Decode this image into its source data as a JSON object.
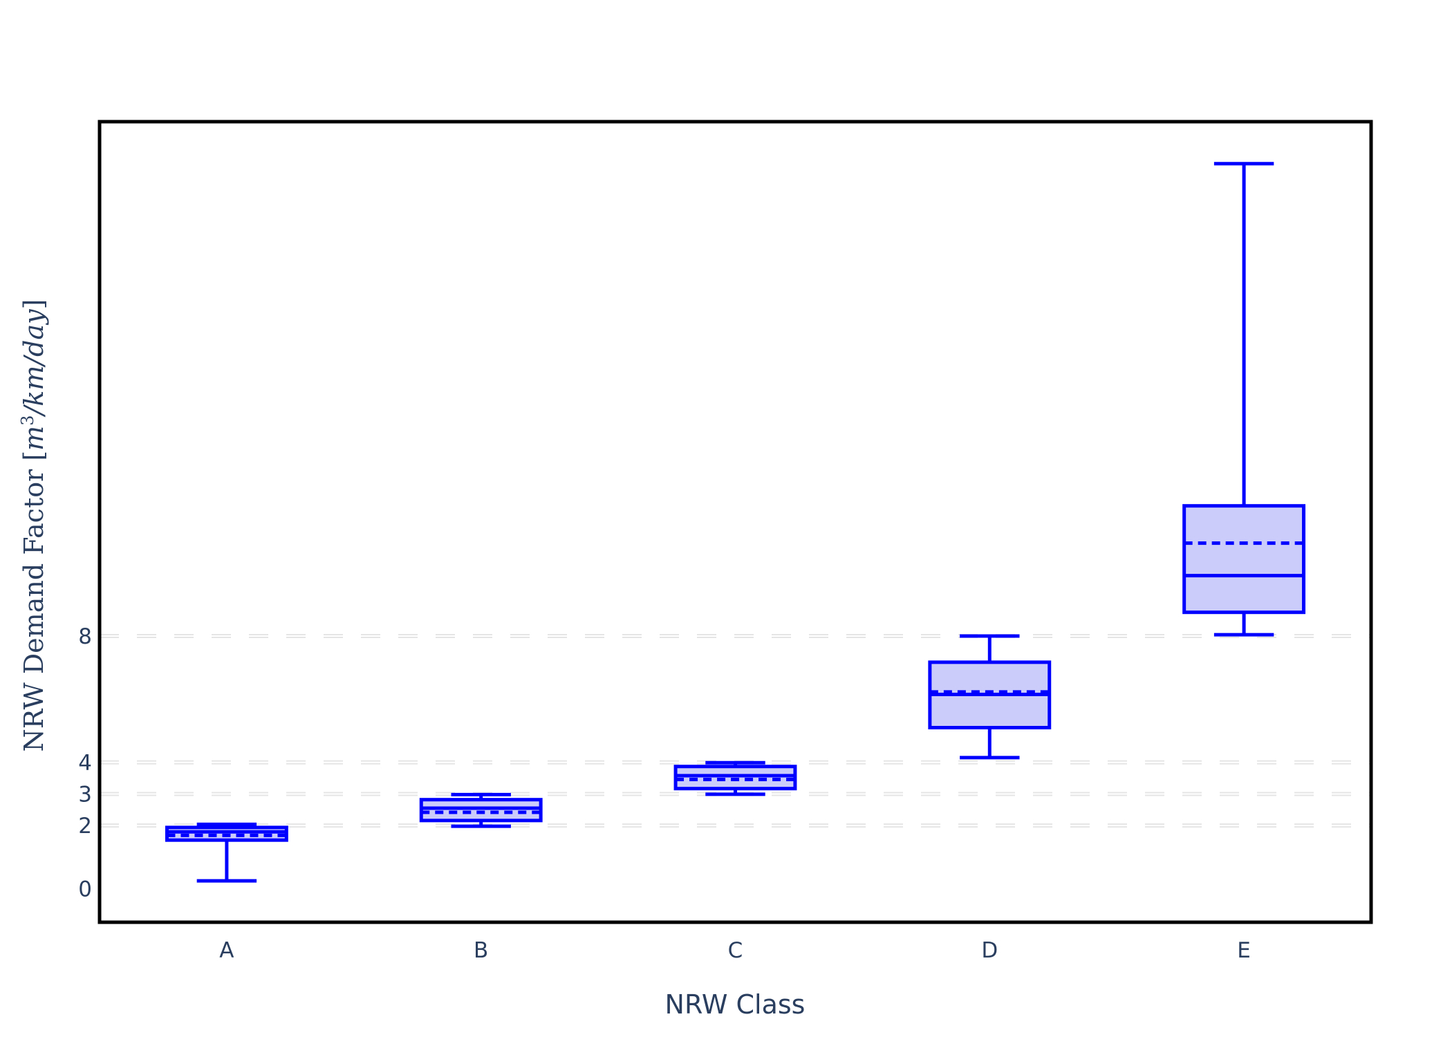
{
  "chart_data": {
    "type": "box",
    "title": "",
    "xlabel": "NRW Class",
    "ylabel": {
      "text": "NRW Demand Factor",
      "unit_math": "m",
      "unit_exp": "3",
      "unit_rest": "/km/day"
    },
    "categories": [
      "A",
      "B",
      "C",
      "D",
      "E"
    ],
    "yticks": [
      0,
      2,
      3,
      4,
      8
    ],
    "ylim": [
      -1.06,
      24.28
    ],
    "grid": {
      "y": true,
      "style": "dashed"
    },
    "boxes": [
      {
        "category": "A",
        "lowerfence": 0.25,
        "q1": 1.54,
        "median": 1.8,
        "mean": 1.69,
        "q3": 1.94,
        "upperfence": 2.04
      },
      {
        "category": "B",
        "lowerfence": 1.98,
        "q1": 2.16,
        "median": 2.55,
        "mean": 2.42,
        "q3": 2.82,
        "upperfence": 2.98
      },
      {
        "category": "C",
        "lowerfence": 2.99,
        "q1": 3.17,
        "median": 3.58,
        "mean": 3.46,
        "q3": 3.87,
        "upperfence": 3.99
      },
      {
        "category": "D",
        "lowerfence": 4.15,
        "q1": 5.1,
        "median": 6.15,
        "mean": 6.23,
        "q3": 7.17,
        "upperfence": 8.0
      },
      {
        "category": "E",
        "lowerfence": 8.04,
        "q1": 8.75,
        "median": 9.91,
        "mean": 10.94,
        "q3": 12.12,
        "upperfence": 22.95
      }
    ],
    "colors": {
      "line": "#0000ff",
      "fill": "#ccccfa",
      "text": "#2a3f5f",
      "grid": "#e5e5e5",
      "frame": "#000000"
    },
    "boxmean": "dashed"
  }
}
